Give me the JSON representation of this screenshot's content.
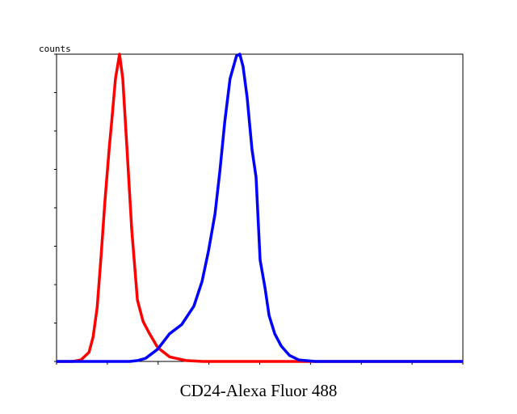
{
  "chart_data": {
    "type": "line",
    "ylabel": "counts",
    "xlabel": "CD24-Alexa Fluor 488",
    "xlim": [
      0,
      100
    ],
    "ylim": [
      0,
      100
    ],
    "xticks": [
      0,
      12.5,
      25,
      37.5,
      50,
      62.5,
      75,
      87.5,
      100
    ],
    "yticks": [
      0,
      12.5,
      25,
      37.5,
      50,
      62.5,
      75,
      87.5,
      100
    ],
    "series": [
      {
        "color": "#ff0000",
        "x": [
          0,
          4,
          6,
          8,
          9,
          10,
          11,
          11.9,
          13,
          13.5,
          14.5,
          15.5,
          16.3,
          17.3,
          18.5,
          19.9,
          21.3,
          22.9,
          24.9,
          27.8,
          31.8,
          36,
          60,
          100
        ],
        "values": [
          0,
          0,
          0.5,
          3,
          8,
          17.6,
          35,
          52,
          70,
          77,
          92,
          100,
          92,
          70,
          43,
          20,
          13,
          9,
          4.5,
          1.5,
          0.3,
          0,
          0,
          0
        ]
      },
      {
        "color": "#0000ff",
        "x": [
          0,
          18,
          20,
          21.9,
          24.9,
          27.8,
          30.8,
          33.8,
          35.8,
          37.4,
          39,
          40.2,
          41.4,
          42.7,
          44.3,
          45.1,
          45.9,
          46.9,
          48.1,
          49.1,
          50.1,
          51.3,
          52.3,
          53.7,
          55.3,
          57.3,
          59.6,
          63.6,
          100
        ],
        "values": [
          0,
          0,
          0.3,
          1,
          4,
          9,
          12,
          18,
          26,
          36,
          48,
          62,
          78,
          92,
          99.5,
          100,
          96,
          86,
          69,
          60,
          33,
          24,
          15,
          9,
          5,
          2,
          0.5,
          0,
          0
        ]
      }
    ]
  }
}
